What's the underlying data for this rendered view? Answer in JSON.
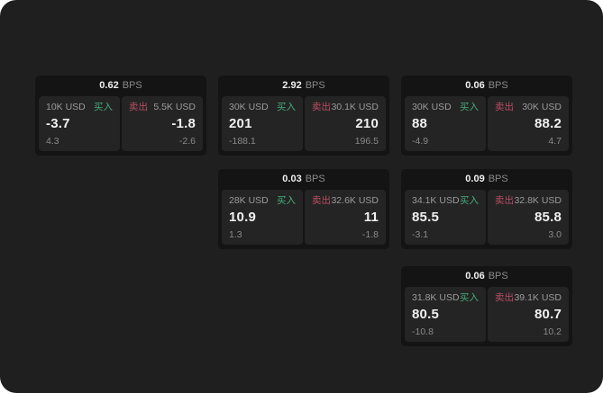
{
  "theme": {
    "page_bg": "#1f1f1f",
    "card_bg": "#141414",
    "tile_bg": "#242424",
    "text_primary": "#f0f0f0",
    "text_muted": "#8a8a8a",
    "text_muted_strong": "#9b9b9b",
    "buy_color": "#46ab7c",
    "sell_color": "#bb4d62"
  },
  "labels": {
    "bps_unit": "BPS",
    "buy": "买入",
    "sell": "卖出"
  },
  "cards": [
    {
      "bps": "0.62",
      "buy": {
        "size": "10K USD",
        "value": "-3.7",
        "delta": "4.3"
      },
      "sell": {
        "size": "5.5K USD",
        "value": "-1.8",
        "delta": "-2.6"
      }
    },
    {
      "bps": "2.92",
      "buy": {
        "size": "30K USD",
        "value": "201",
        "delta": "-188.1"
      },
      "sell": {
        "size": "30.1K USD",
        "value": "210",
        "delta": "196.5"
      }
    },
    {
      "bps": "0.06",
      "buy": {
        "size": "30K USD",
        "value": "88",
        "delta": "-4.9"
      },
      "sell": {
        "size": "30K USD",
        "value": "88.2",
        "delta": "4.7"
      }
    },
    {
      "bps": "0.03",
      "buy": {
        "size": "28K USD",
        "value": "10.9",
        "delta": "1.3"
      },
      "sell": {
        "size": "32.6K USD",
        "value": "11",
        "delta": "-1.8"
      }
    },
    {
      "bps": "0.09",
      "buy": {
        "size": "34.1K USD",
        "value": "85.5",
        "delta": "-3.1"
      },
      "sell": {
        "size": "32.8K USD",
        "value": "85.8",
        "delta": "3.0"
      }
    },
    {
      "bps": "0.06",
      "buy": {
        "size": "31.8K USD",
        "value": "80.5",
        "delta": "-10.8"
      },
      "sell": {
        "size": "39.1K USD",
        "value": "80.7",
        "delta": "10.2"
      }
    }
  ]
}
